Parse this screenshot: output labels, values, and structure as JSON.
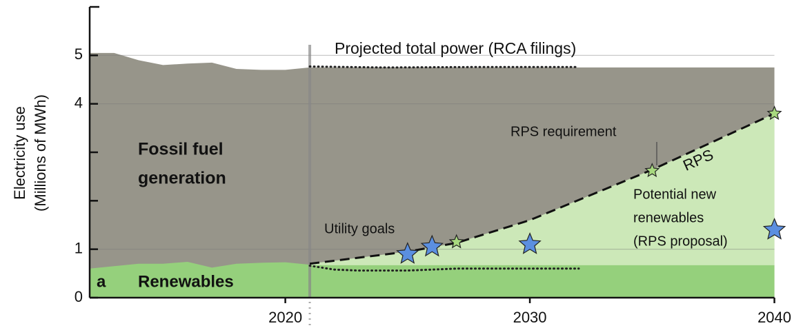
{
  "chart_data": {
    "type": "area",
    "ylabel": [
      "Electricity use",
      "(Millions of MWh)"
    ],
    "xlim": [
      2012,
      2041
    ],
    "xticks": [
      2020,
      2030,
      2040
    ],
    "ylim": [
      0,
      6
    ],
    "yticks": [
      0,
      1,
      4,
      5
    ],
    "minor_yticks": [
      2,
      3
    ],
    "grid": true,
    "present_year": 2021,
    "total_history": {
      "color": "#97958a",
      "x": [
        2012,
        2013,
        2014,
        2015,
        2016,
        2017,
        2018,
        2019,
        2020,
        2021
      ],
      "values": [
        5.05,
        5.05,
        4.9,
        4.8,
        4.83,
        4.85,
        4.72,
        4.7,
        4.7,
        4.75
      ]
    },
    "total_projection": {
      "color": "#97958a",
      "x": [
        2021,
        2040
      ],
      "values": [
        4.75,
        4.75
      ]
    },
    "total_dotted": {
      "x": [
        2021,
        2024,
        2028,
        2032
      ],
      "values": [
        4.77,
        4.75,
        4.76,
        4.76
      ]
    },
    "renewables_history": {
      "color": "#95d07c",
      "x": [
        2012,
        2013,
        2014,
        2015,
        2016,
        2017,
        2018,
        2019,
        2020,
        2021
      ],
      "values": [
        0.6,
        0.65,
        0.7,
        0.7,
        0.74,
        0.62,
        0.7,
        0.72,
        0.73,
        0.68
      ]
    },
    "renewables_projection": {
      "color": "#95d07c",
      "x": [
        2021,
        2040
      ],
      "values": [
        0.67,
        0.67
      ]
    },
    "renewables_dotted": {
      "x": [
        2021,
        2022,
        2023,
        2025,
        2027,
        2032
      ],
      "values": [
        0.66,
        0.58,
        0.56,
        0.56,
        0.6,
        0.6
      ]
    },
    "rps": {
      "color": "#cce8b8",
      "x": [
        2021,
        2025,
        2027,
        2030,
        2035,
        2040
      ],
      "values": [
        0.7,
        0.95,
        1.13,
        1.6,
        2.64,
        3.8
      ]
    },
    "utility_goal_stars": {
      "color": "#5b8fe0",
      "x": [
        2025,
        2026,
        2030,
        2040
      ],
      "values": [
        0.9,
        1.05,
        1.1,
        1.4
      ]
    },
    "rps_stars": {
      "color": "#a8d97f",
      "x": [
        2027,
        2035,
        2040
      ],
      "values": [
        1.15,
        2.62,
        3.8
      ]
    },
    "annotations": [
      {
        "lines": [
          "Projected total power (RCA filings)"
        ]
      },
      {
        "lines": [
          "Fossil fuel",
          "generation"
        ]
      },
      {
        "lines": [
          "a"
        ]
      },
      {
        "lines": [
          "Renewables"
        ]
      },
      {
        "lines": [
          "Utility goals"
        ]
      },
      {
        "lines": [
          "RPS requirement"
        ]
      },
      {
        "lines": [
          "RPS"
        ]
      },
      {
        "lines": [
          "Potential new",
          "renewables",
          "(RPS proposal)"
        ]
      }
    ]
  }
}
